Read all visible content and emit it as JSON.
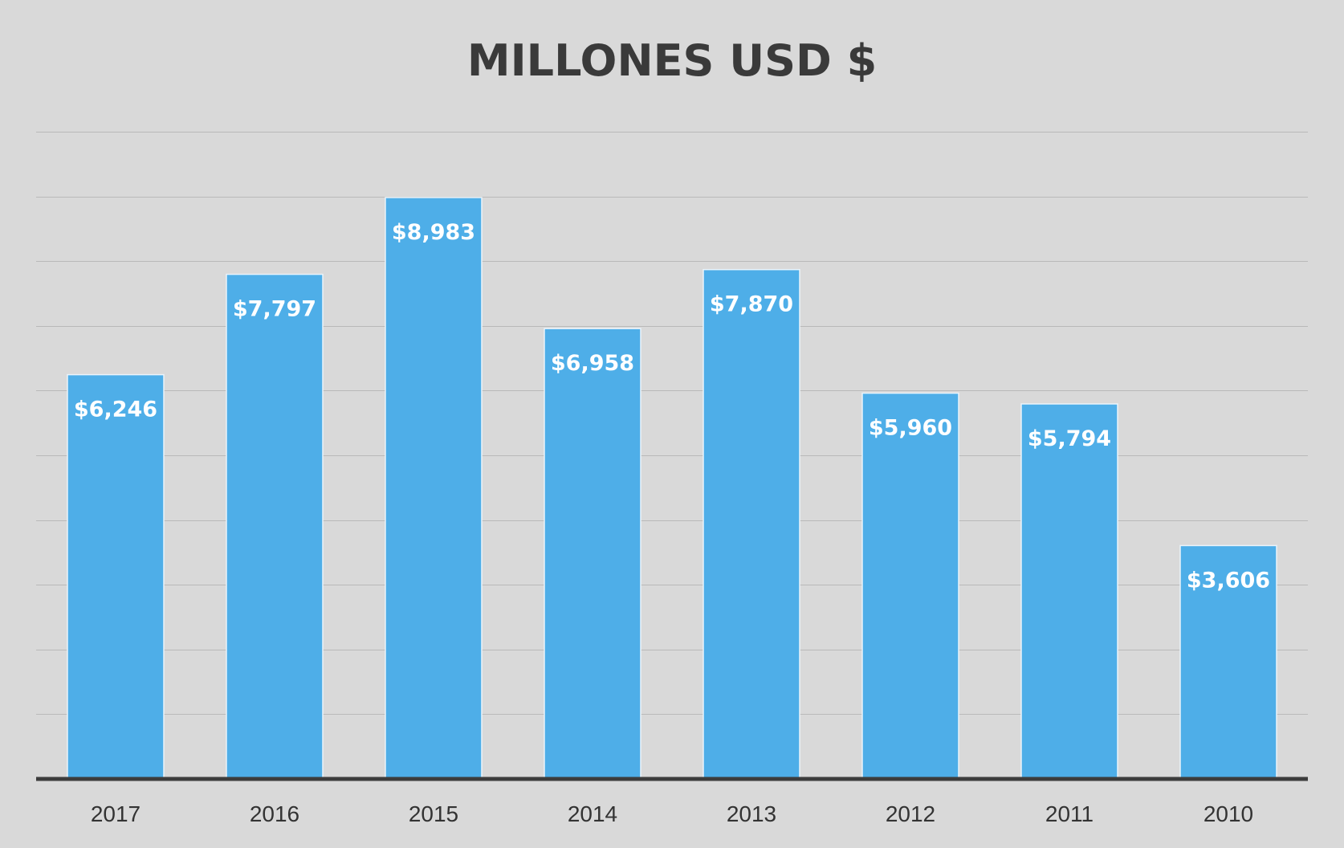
{
  "chart_data": {
    "type": "bar",
    "title": "MILLONES USD $",
    "xlabel": "",
    "ylabel": "",
    "categories": [
      "2017",
      "2016",
      "2015",
      "2014",
      "2013",
      "2012",
      "2011",
      "2010"
    ],
    "values": [
      6246,
      7797,
      8983,
      6958,
      7870,
      5960,
      5794,
      3606
    ],
    "value_labels": [
      "$6,246",
      "$7,797",
      "$8,983",
      "$6,958",
      "$7,870",
      "$5,960",
      "$5,794",
      "$3,606"
    ],
    "ylim": [
      0,
      10000
    ],
    "grid_step": 1000,
    "grid": true,
    "legend": "none",
    "colors": {
      "background": "#d9d9d9",
      "bar": "#4eaee8",
      "grid": "#b9b9b9",
      "axis": "#3c3c3c",
      "title": "#3a3a3a",
      "label": "#ffffff",
      "tick": "#333333"
    }
  }
}
